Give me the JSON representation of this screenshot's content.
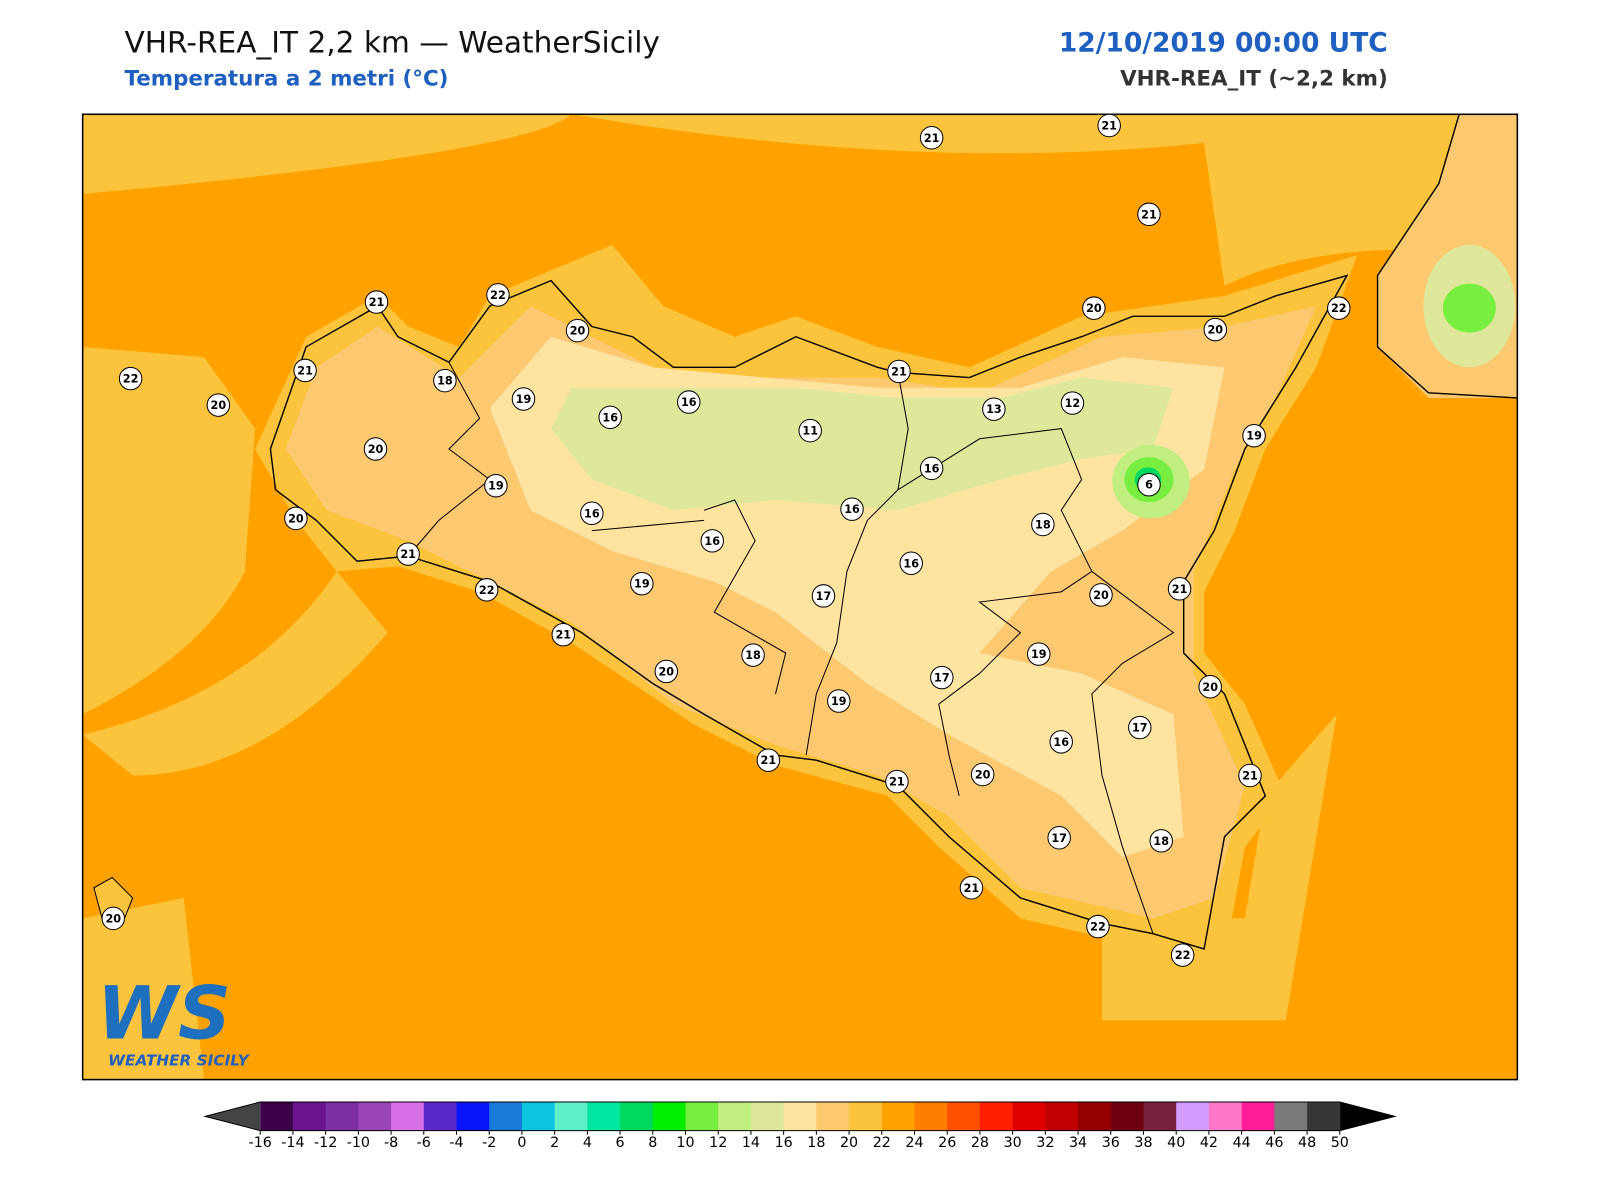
{
  "header": {
    "title": "VHR-REA_IT 2,2 km — WeatherSicily",
    "subtitle": "Temperatura a 2 metri (°C)",
    "datetime": "12/10/2019 00:00 UTC",
    "model": "VHR-REA_IT (~2,2 km)"
  },
  "stations": [
    21,
    21,
    21,
    21,
    22,
    20,
    20,
    22,
    20,
    22,
    21,
    18,
    19,
    16,
    16,
    11,
    21,
    13,
    12,
    20,
    20,
    16,
    6,
    19,
    19,
    16,
    16,
    16,
    18,
    20,
    21,
    16,
    22,
    19,
    17,
    20,
    21,
    21,
    18,
    19,
    20,
    17,
    19,
    20,
    17,
    16,
    21,
    21,
    20,
    21,
    17,
    18,
    21,
    22,
    22,
    20
  ],
  "colorbar": {
    "ticks": [
      -16,
      -14,
      -12,
      -10,
      -8,
      -6,
      -4,
      -2,
      0,
      2,
      4,
      6,
      8,
      10,
      12,
      14,
      16,
      18,
      20,
      22,
      24,
      26,
      28,
      30,
      32,
      34,
      36,
      38,
      40,
      42,
      44,
      46,
      48,
      50
    ],
    "colors": [
      "#3d0048",
      "#6a1490",
      "#7b2fa0",
      "#9a44b8",
      "#d86fe6",
      "#5a28c8",
      "#0a14f8",
      "#1a7ad8",
      "#0cc4e0",
      "#5ef0c8",
      "#00e6a0",
      "#00d860",
      "#00ee00",
      "#78ee40",
      "#c0ee80",
      "#dfe89a",
      "#ffe4a0",
      "#fcc870",
      "#fcc43c",
      "#ffa200",
      "#ff7e00",
      "#ff5000",
      "#ff1e00",
      "#e00000",
      "#c00000",
      "#960000",
      "#6e0010",
      "#782040",
      "#d49cff",
      "#ff78c8",
      "#ff1e96",
      "#7a7a7a",
      "#363636"
    ],
    "under_color": "#444444",
    "over_color": "#000000"
  },
  "logo": {
    "mark": "WS",
    "text": "WEATHER SICILY"
  }
}
